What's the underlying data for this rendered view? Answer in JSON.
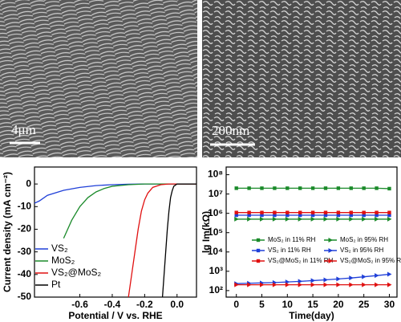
{
  "images": [
    {
      "scale_label": "4μm"
    },
    {
      "scale_label": "200nm"
    }
  ],
  "chart_data": [
    {
      "type": "line",
      "x_label": "Potential / V vs. RHE",
      "y_label": "Current density (mA cm⁻²)",
      "xlim": [
        -0.88,
        0.12
      ],
      "ylim": [
        -50,
        7.5
      ],
      "xticks": [
        -0.6,
        -0.4,
        -0.2,
        {
          "value": 0,
          "label": "0.0"
        }
      ],
      "yticks": [
        0,
        -10,
        -20,
        -30,
        -40,
        -50
      ],
      "series": [
        {
          "name": "VS₂",
          "color": "#1f3fd8",
          "x": [
            -0.88,
            -0.85,
            -0.8,
            -0.7,
            -0.6,
            -0.5,
            -0.4,
            -0.3,
            -0.2,
            0.12
          ],
          "values": [
            -8.5,
            -7.5,
            -5,
            -2.8,
            -1.5,
            -0.7,
            -0.3,
            -0.1,
            0,
            0
          ]
        },
        {
          "name": "MoS₂",
          "color": "#1a8a2a",
          "x": [
            -0.7,
            -0.65,
            -0.6,
            -0.55,
            -0.5,
            -0.45,
            -0.4,
            -0.3,
            -0.2,
            0.12
          ],
          "values": [
            -24,
            -16,
            -10,
            -6,
            -3.5,
            -2,
            -1,
            -0.3,
            0,
            0
          ]
        },
        {
          "name": "VS₂@MoS₂",
          "color": "#e01010",
          "x": [
            -0.3,
            -0.28,
            -0.26,
            -0.24,
            -0.22,
            -0.2,
            -0.18,
            -0.15,
            -0.1,
            -0.05,
            0.12
          ],
          "values": [
            -50,
            -40,
            -30,
            -20,
            -12,
            -7,
            -4,
            -1.5,
            -0.3,
            0,
            0
          ]
        },
        {
          "name": "Pt",
          "color": "#000000",
          "x": [
            -0.09,
            -0.08,
            -0.07,
            -0.06,
            -0.05,
            -0.04,
            -0.03,
            -0.02,
            0,
            0.12
          ],
          "values": [
            -50,
            -40,
            -30,
            -20,
            -12,
            -6,
            -3,
            -1,
            0,
            0
          ]
        }
      ]
    },
    {
      "type": "line",
      "x_label": "Time(day)",
      "y_label": "lg Im(kΩ)",
      "log_y": true,
      "xlim": [
        -2,
        31.5
      ],
      "ylim": [
        46,
        250000000
      ],
      "xticks": [
        0,
        5,
        10,
        15,
        20,
        25,
        30
      ],
      "yticks": [
        {
          "value": 100,
          "label": "10²"
        },
        {
          "value": 1000,
          "label": "10³"
        },
        {
          "value": 10000,
          "label": "10⁴"
        },
        {
          "value": 100000,
          "label": "10⁵"
        },
        {
          "value": 1000000,
          "label": "10⁶"
        },
        {
          "value": 10000000,
          "label": "10⁷"
        },
        {
          "value": 100000000,
          "label": "10⁸"
        }
      ],
      "series": [
        {
          "name": "MoS₂ in 11% RH",
          "color": "#1a8a2a",
          "marker": "square",
          "x": [
            0,
            2.5,
            5,
            7.5,
            10,
            12.5,
            15,
            17.5,
            20,
            22.5,
            25,
            27.5,
            30
          ],
          "values": [
            20000000,
            20000000,
            20000000,
            20000000,
            20000000,
            20000000,
            20000000,
            20000000,
            20000000,
            20000000,
            20000000,
            20000000,
            19000000
          ]
        },
        {
          "name": "MoS₂ in 95% RH",
          "color": "#1a8a2a",
          "marker": "triangle",
          "x": [
            0,
            2.5,
            5,
            7.5,
            10,
            12.5,
            15,
            17.5,
            20,
            22.5,
            25,
            27.5,
            30
          ],
          "values": [
            500000,
            500000,
            500000,
            500000,
            500000,
            500000,
            500000,
            500000,
            500000,
            500000,
            500000,
            500000,
            500000
          ]
        },
        {
          "name": "VS₂ in 11% RH",
          "color": "#1f3fd8",
          "marker": "square",
          "x": [
            0,
            2.5,
            5,
            7.5,
            10,
            12.5,
            15,
            17.5,
            20,
            22.5,
            25,
            27.5,
            30
          ],
          "values": [
            800000,
            800000,
            800000,
            800000,
            800000,
            800000,
            800000,
            800000,
            800000,
            800000,
            800000,
            800000,
            800000
          ]
        },
        {
          "name": "VS₂ in 95% RH",
          "color": "#1f3fd8",
          "marker": "triangle",
          "x": [
            0,
            2.5,
            5,
            7.5,
            10,
            12.5,
            15,
            17.5,
            20,
            22.5,
            25,
            27.5,
            30
          ],
          "values": [
            230,
            240,
            250,
            260,
            280,
            300,
            330,
            360,
            400,
            450,
            520,
            600,
            700
          ]
        },
        {
          "name": "VS₂@MoS₂ in 11% RH",
          "color": "#e01010",
          "marker": "square",
          "x": [
            0,
            2.5,
            5,
            7.5,
            10,
            12.5,
            15,
            17.5,
            20,
            22.5,
            25,
            27.5,
            30
          ],
          "values": [
            1100000,
            1100000,
            1100000,
            1100000,
            1100000,
            1100000,
            1100000,
            1100000,
            1100000,
            1100000,
            1100000,
            1100000,
            1100000
          ]
        },
        {
          "name": "VS₂@MoS₂ in 95% RH",
          "color": "#e01010",
          "marker": "triangle",
          "x": [
            0,
            2.5,
            5,
            7.5,
            10,
            12.5,
            15,
            17.5,
            20,
            22.5,
            25,
            27.5,
            30
          ],
          "values": [
            200,
            200,
            200,
            200,
            200,
            200,
            200,
            200,
            200,
            200,
            200,
            200,
            200
          ]
        }
      ]
    }
  ]
}
